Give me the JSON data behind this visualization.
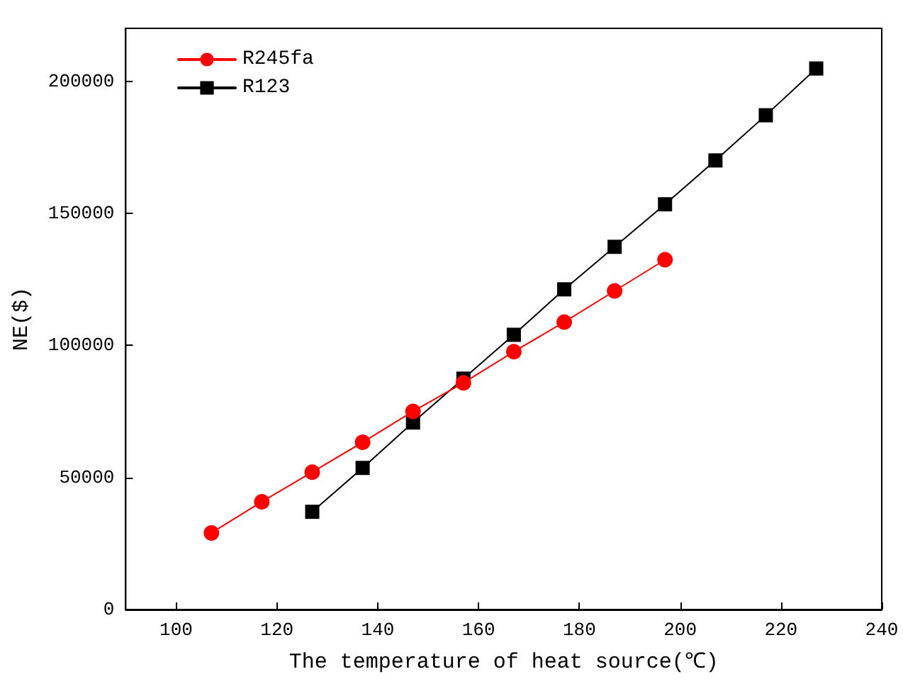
{
  "chart_data": {
    "type": "line",
    "xlabel": "The temperature of heat source(℃)",
    "ylabel": "NE($)",
    "xlim": [
      90,
      240
    ],
    "xticks": [
      100,
      120,
      140,
      160,
      180,
      200,
      220,
      240
    ],
    "ylim": [
      0,
      220000
    ],
    "yticks": [
      0,
      50000,
      100000,
      150000,
      200000
    ],
    "grid": false,
    "legend": "top left",
    "series": [
      {
        "name": "R245fa",
        "color": "#ff0000",
        "marker": "circle",
        "x": [
          107,
          117,
          127,
          137,
          147,
          157,
          167,
          177,
          187,
          197
        ],
        "values": [
          29000,
          40800,
          52000,
          63300,
          75000,
          85800,
          97600,
          108800,
          120600,
          132400
        ]
      },
      {
        "name": "R123",
        "color": "#000000",
        "marker": "square",
        "x": [
          127,
          137,
          147,
          157,
          167,
          177,
          187,
          197,
          207,
          217,
          227
        ],
        "values": [
          37000,
          53600,
          70800,
          87400,
          104000,
          121200,
          137300,
          153400,
          170000,
          187100,
          204800
        ]
      }
    ]
  }
}
